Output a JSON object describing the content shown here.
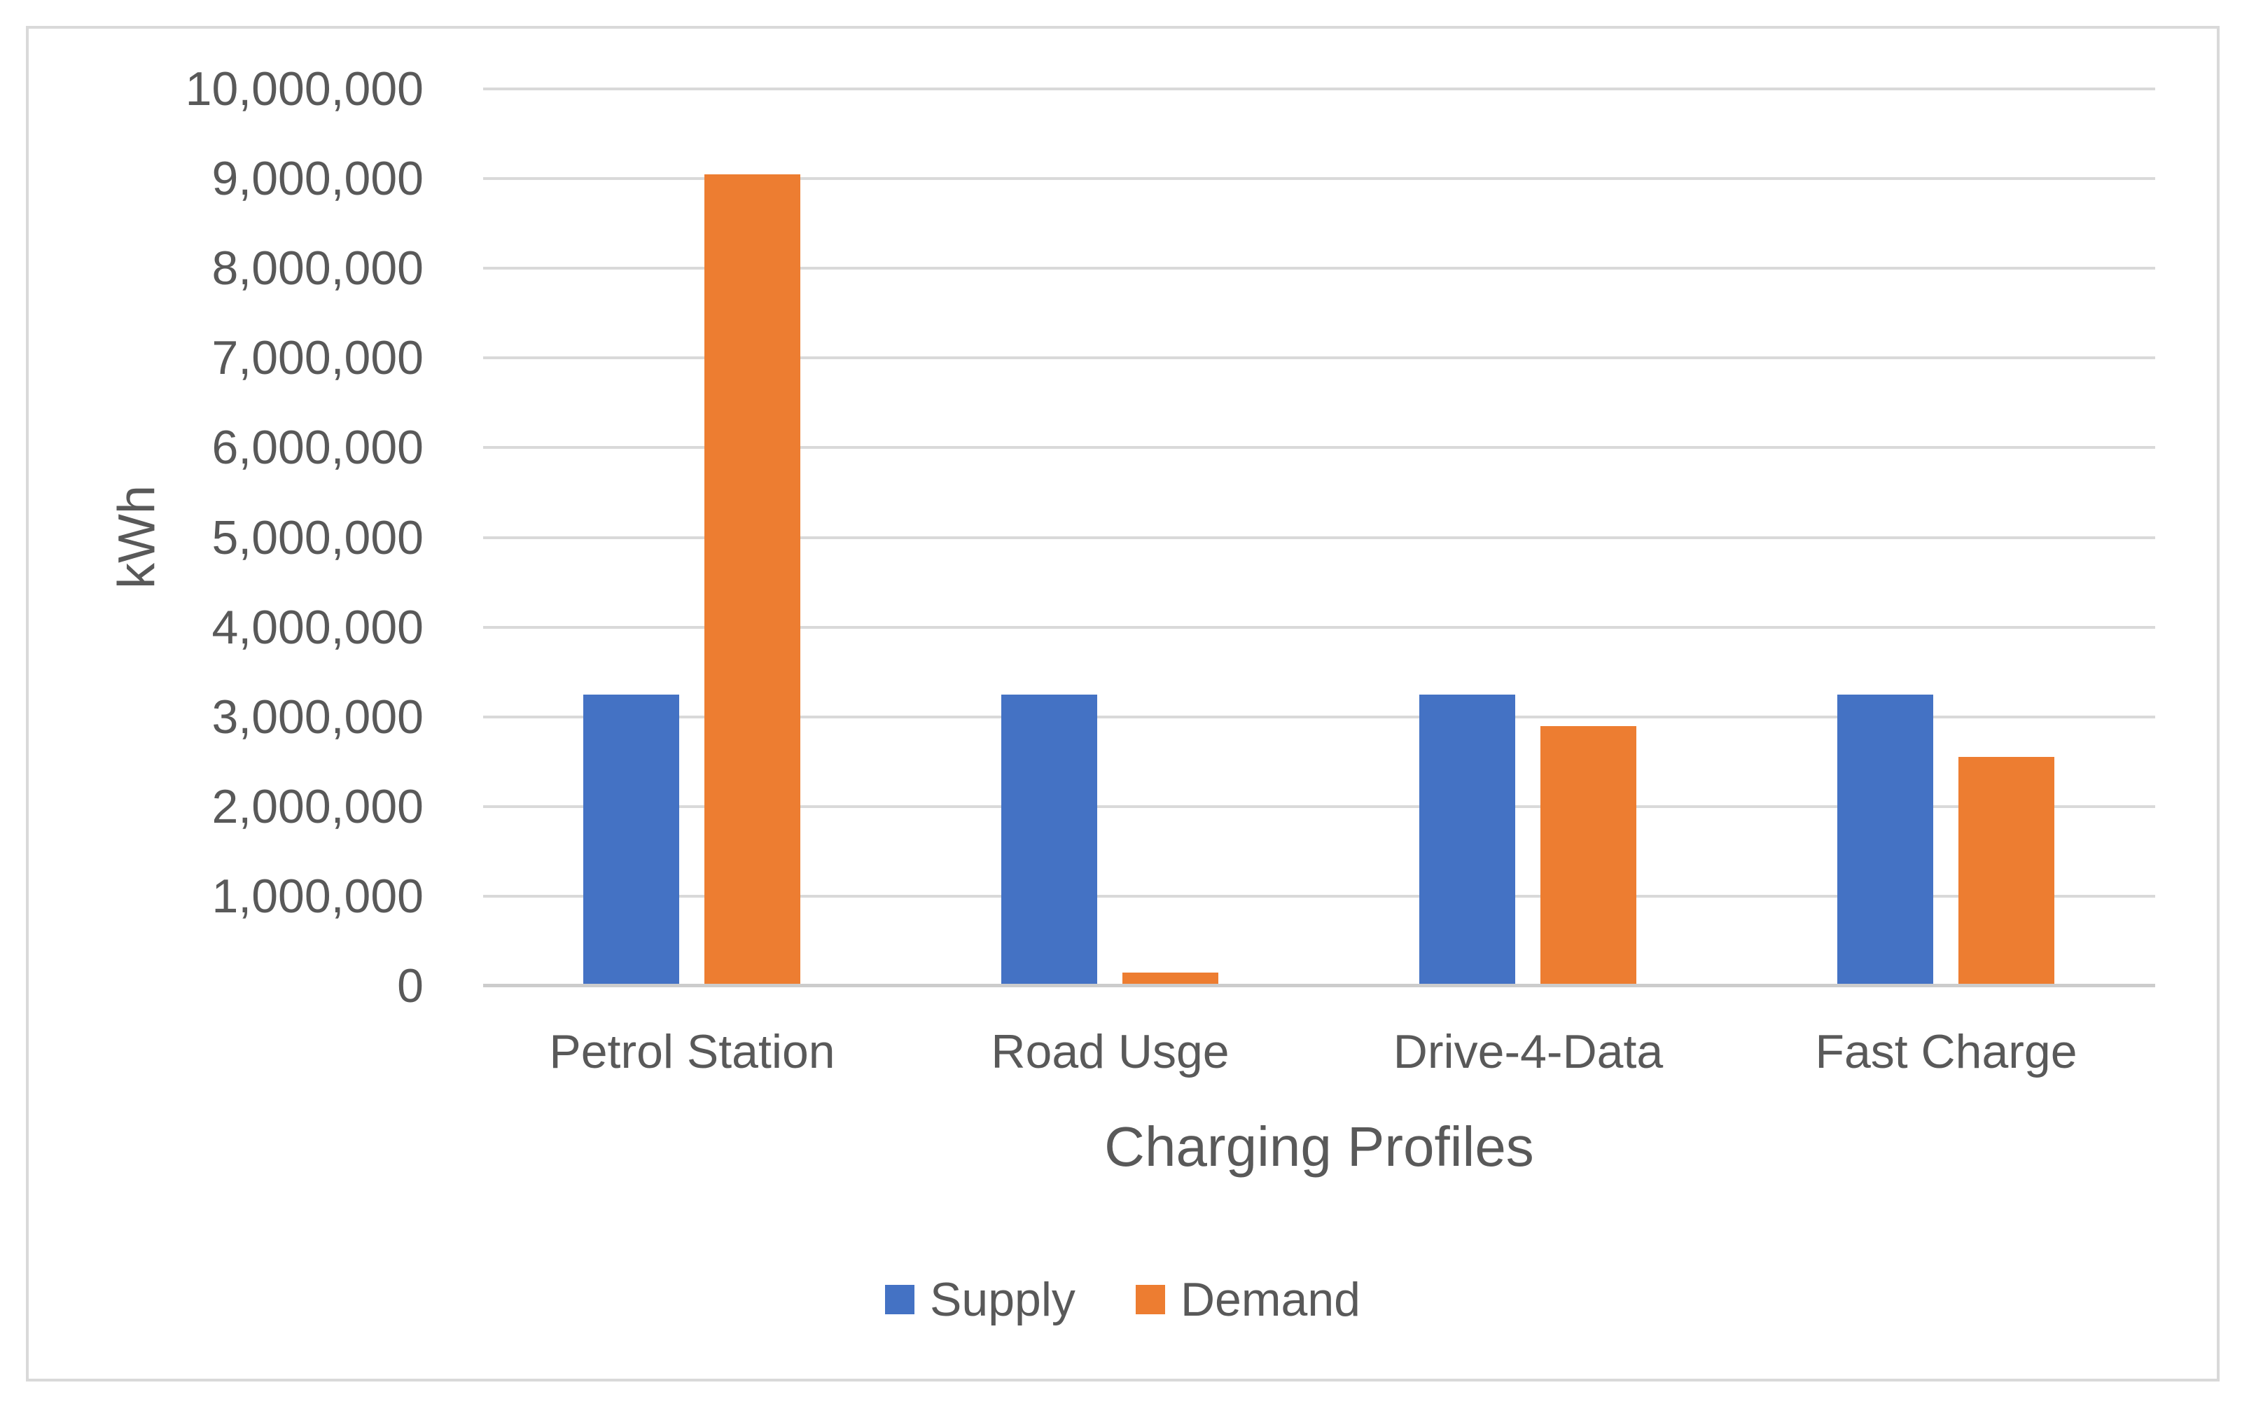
{
  "figure": {
    "y_axis_title": "kWh",
    "x_axis_title": "Charging Profiles"
  },
  "chart_data": {
    "type": "bar",
    "title": "",
    "categories": [
      "Petrol Station",
      "Road Usge",
      "Drive-4-Data",
      "Fast Charge"
    ],
    "series": [
      {
        "name": "Supply",
        "color": "#4472C4",
        "values": [
          3250000,
          3250000,
          3250000,
          3250000
        ]
      },
      {
        "name": "Demand",
        "color": "#ED7D31",
        "values": [
          9050000,
          150000,
          2900000,
          2550000
        ]
      }
    ],
    "xlabel": "Charging Profiles",
    "ylabel": "kWh",
    "ylim": [
      0,
      10000000
    ],
    "y_tick_interval": 1000000,
    "y_tick_labels": [
      "0",
      "1,000,000",
      "2,000,000",
      "3,000,000",
      "4,000,000",
      "5,000,000",
      "6,000,000",
      "7,000,000",
      "8,000,000",
      "9,000,000",
      "10,000,000"
    ],
    "grid": "horizontal",
    "legend_position": "bottom"
  },
  "legend": {
    "items": [
      {
        "label": "Supply",
        "color": "#4472C4"
      },
      {
        "label": "Demand",
        "color": "#ED7D31"
      }
    ]
  },
  "colors": {
    "text": "#595959",
    "gridline": "#D9D9D9",
    "axis_line": "#CCCCCC",
    "border": "#D9D9D9",
    "background": "#FFFFFF"
  }
}
